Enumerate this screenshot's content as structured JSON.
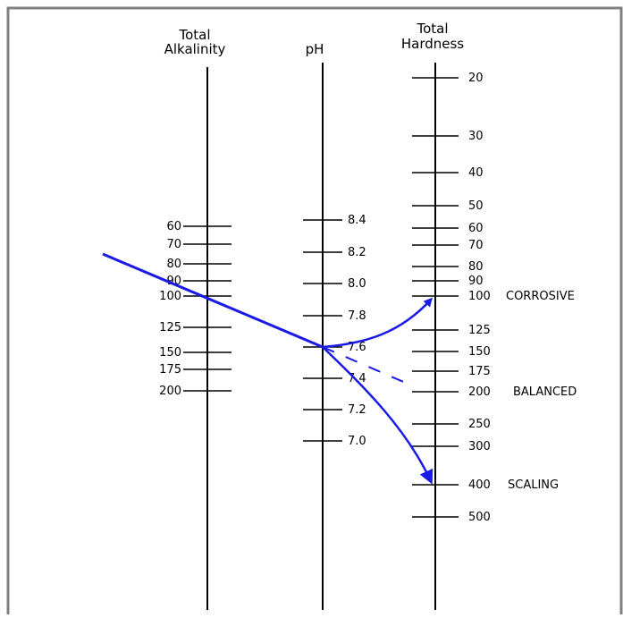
{
  "nomogram": {
    "headers": {
      "alkalinity_line1": "Total",
      "alkalinity_line2": "Alkalinity",
      "ph": "pH",
      "hardness_line1": "Total",
      "hardness_line2": "Hardness"
    },
    "alkalinity_ticks": [
      "60",
      "70",
      "80",
      "90",
      "100",
      "125",
      "150",
      "175",
      "200"
    ],
    "ph_ticks": [
      "8.4",
      "8.2",
      "8.0",
      "7.8",
      "7.6",
      "7.4",
      "7.2",
      "7.0"
    ],
    "hardness_ticks": [
      "20",
      "30",
      "40",
      "50",
      "60",
      "70",
      "80",
      "90",
      "100",
      "125",
      "150",
      "175",
      "200",
      "250",
      "300",
      "400",
      "500"
    ],
    "results": {
      "corrosive": "CORROSIVE",
      "balanced": "BALANCED",
      "scaling": "SCALING"
    },
    "colors": {
      "arrow": "#1a1ae6",
      "axis": "#000000",
      "border": "#808080"
    }
  }
}
